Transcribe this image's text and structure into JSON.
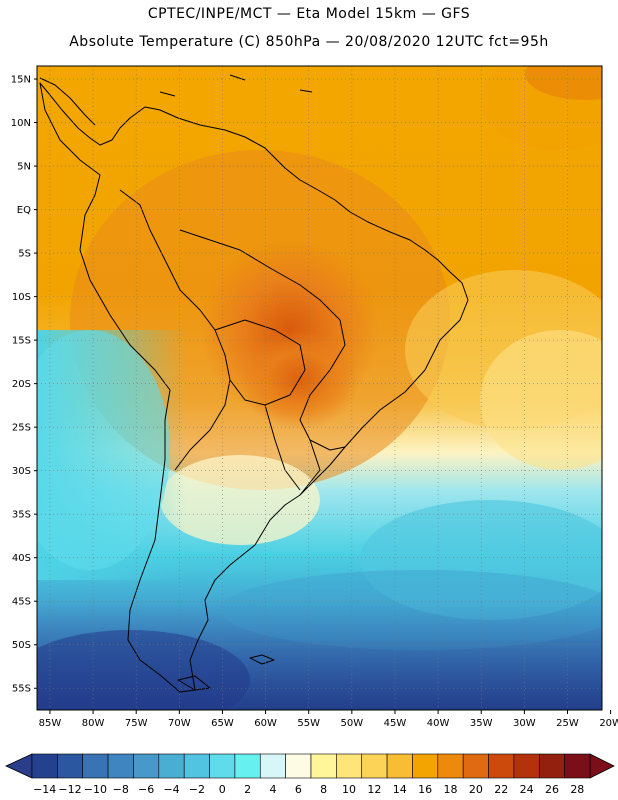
{
  "header": {
    "line1": "CPTEC/INPE/MCT —  Eta Model 15km — GFS",
    "line2": "Absolute Temperature (C) 850hPa — 20/08/2020 12UTC fct=95h"
  },
  "axes": {
    "lat_labels": [
      "15N",
      "10N",
      "5N",
      "EQ",
      "5S",
      "10S",
      "15S",
      "20S",
      "25S",
      "30S",
      "35S",
      "40S",
      "45S",
      "50S",
      "55S"
    ],
    "lon_labels": [
      "85W",
      "80W",
      "75W",
      "70W",
      "65W",
      "60W",
      "55W",
      "50W",
      "45W",
      "40W",
      "35W",
      "30W",
      "25W",
      "20W"
    ],
    "lat_range_deg": [
      -57.5,
      16.5
    ],
    "lon_range_deg": [
      -86.5,
      -21
    ]
  },
  "colorbar": {
    "labels": [
      "-14",
      "-12",
      "-10",
      "-8",
      "-6",
      "-4",
      "-2",
      "0",
      "2",
      "4",
      "6",
      "8",
      "10",
      "12",
      "14",
      "16",
      "18",
      "20",
      "22",
      "24",
      "26",
      "28"
    ],
    "under_color": "#2a3d8a",
    "over_color": "#7a0f1a",
    "colors": [
      "#23418f",
      "#2b56a0",
      "#3a73b4",
      "#3f86c0",
      "#4699c9",
      "#4aaed3",
      "#50c4e0",
      "#5fdceb",
      "#66f0ee",
      "#d7f6f8",
      "#fdfbe4",
      "#fff69a",
      "#fde57a",
      "#fcd257",
      "#f9bd34",
      "#f3a400",
      "#ed8a0c",
      "#e06a12",
      "#cc4a0c",
      "#b3320c",
      "#93200f",
      "#7a0f1a"
    ]
  }
}
